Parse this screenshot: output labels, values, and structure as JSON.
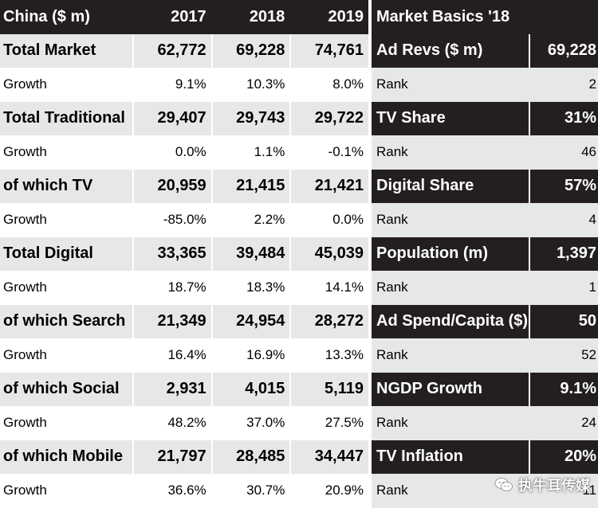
{
  "left_table": {
    "header": {
      "label": "China ($ m)",
      "years": [
        "2017",
        "2018",
        "2019"
      ]
    },
    "rows": [
      {
        "type": "main",
        "label": "Total Market",
        "values": [
          "62,772",
          "69,228",
          "74,761"
        ]
      },
      {
        "type": "growth",
        "label": "Growth",
        "values": [
          "9.1%",
          "10.3%",
          "8.0%"
        ]
      },
      {
        "type": "main",
        "label": "Total Traditional",
        "values": [
          "29,407",
          "29,743",
          "29,722"
        ]
      },
      {
        "type": "growth",
        "label": "Growth",
        "values": [
          "0.0%",
          "1.1%",
          "-0.1%"
        ]
      },
      {
        "type": "main",
        "label": "of which TV",
        "values": [
          "20,959",
          "21,415",
          "21,421"
        ]
      },
      {
        "type": "growth",
        "label": "Growth",
        "values": [
          "-85.0%",
          "2.2%",
          "0.0%"
        ]
      },
      {
        "type": "main",
        "label": "Total Digital",
        "values": [
          "33,365",
          "39,484",
          "45,039"
        ]
      },
      {
        "type": "growth",
        "label": "Growth",
        "values": [
          "18.7%",
          "18.3%",
          "14.1%"
        ]
      },
      {
        "type": "main",
        "label": "of which Search",
        "values": [
          "21,349",
          "24,954",
          "28,272"
        ]
      },
      {
        "type": "growth",
        "label": "Growth",
        "values": [
          "16.4%",
          "16.9%",
          "13.3%"
        ]
      },
      {
        "type": "main",
        "label": "of which Social",
        "values": [
          "2,931",
          "4,015",
          "5,119"
        ]
      },
      {
        "type": "growth",
        "label": "Growth",
        "values": [
          "48.2%",
          "37.0%",
          "27.5%"
        ]
      },
      {
        "type": "main",
        "label": "of which Mobile",
        "values": [
          "21,797",
          "28,485",
          "34,447"
        ]
      },
      {
        "type": "growth",
        "label": "Growth",
        "values": [
          "36.6%",
          "30.7%",
          "20.9%"
        ]
      }
    ]
  },
  "right_table": {
    "title": "Market Basics '18",
    "rows": [
      {
        "type": "metric",
        "label": "Ad Revs ($ m)",
        "value": "69,228"
      },
      {
        "type": "rank",
        "label": "Rank",
        "value": "2"
      },
      {
        "type": "metric",
        "label": "TV Share",
        "value": "31%"
      },
      {
        "type": "rank",
        "label": "Rank",
        "value": "46"
      },
      {
        "type": "metric",
        "label": "Digital Share",
        "value": "57%"
      },
      {
        "type": "rank",
        "label": "Rank",
        "value": "4"
      },
      {
        "type": "metric",
        "label": "Population (m)",
        "value": "1,397"
      },
      {
        "type": "rank",
        "label": "Rank",
        "value": "1"
      },
      {
        "type": "metric",
        "label": "Ad Spend/Capita ($)",
        "value": "50"
      },
      {
        "type": "rank",
        "label": "Rank",
        "value": "52"
      },
      {
        "type": "metric",
        "label": "NGDP Growth",
        "value": "9.1%"
      },
      {
        "type": "rank",
        "label": "Rank",
        "value": "24"
      },
      {
        "type": "metric",
        "label": "TV Inflation",
        "value": "20%"
      },
      {
        "type": "rank",
        "label": "Rank",
        "value": "11"
      }
    ]
  },
  "watermark": {
    "text": "执牛耳传媒",
    "icon": "wechat-logo-icon"
  },
  "colors": {
    "dark": "#231f20",
    "light_gray": "#e6e7e8",
    "white": "#ffffff"
  }
}
